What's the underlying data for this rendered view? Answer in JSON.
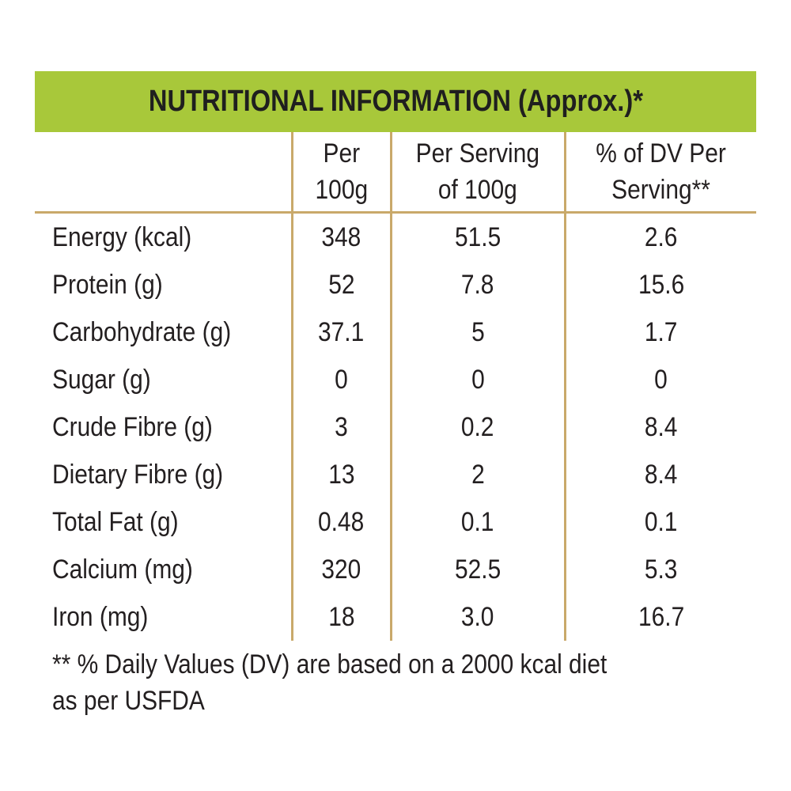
{
  "title": "NUTRITIONAL INFORMATION (Approx.)*",
  "colors": {
    "title_bar": "#a8c83a",
    "rules": "#c9a96a",
    "text": "#231f20"
  },
  "headers": {
    "nutrient": "",
    "per_100g": [
      "Per",
      "100g"
    ],
    "per_serving": [
      "Per Serving",
      "of 100g"
    ],
    "dv_per_serving": [
      "% of DV Per",
      "Serving**"
    ]
  },
  "rows": [
    {
      "name": "Energy (kcal)",
      "per_100g": "348",
      "per_serving": "51.5",
      "dv": "2.6"
    },
    {
      "name": "Protein (g)",
      "per_100g": "52",
      "per_serving": "7.8",
      "dv": "15.6"
    },
    {
      "name": "Carbohydrate (g)",
      "per_100g": "37.1",
      "per_serving": "5",
      "dv": "1.7"
    },
    {
      "name": "Sugar (g)",
      "per_100g": "0",
      "per_serving": "0",
      "dv": "0"
    },
    {
      "name": "Crude Fibre (g)",
      "per_100g": "3",
      "per_serving": "0.2",
      "dv": "8.4"
    },
    {
      "name": "Dietary Fibre (g)",
      "per_100g": "13",
      "per_serving": "2",
      "dv": "8.4"
    },
    {
      "name": "Total Fat (g)",
      "per_100g": "0.48",
      "per_serving": "0.1",
      "dv": "0.1"
    },
    {
      "name": "Calcium (mg)",
      "per_100g": "320",
      "per_serving": "52.5",
      "dv": "5.3"
    },
    {
      "name": "Iron (mg)",
      "per_100g": "18",
      "per_serving": "3.0",
      "dv": "16.7"
    }
  ],
  "footnote": [
    "** % Daily Values (DV) are based on a 2000 kcal diet",
    "as per USFDA"
  ]
}
